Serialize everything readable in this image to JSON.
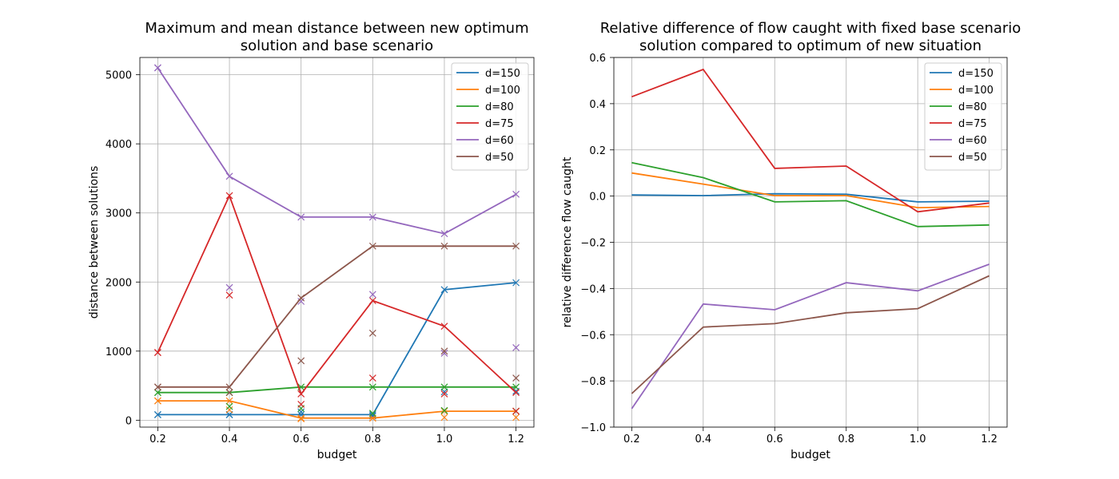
{
  "chart_data": [
    {
      "type": "line",
      "title_lines": [
        "Maximum and mean distance between new optimum",
        "solution and base scenario"
      ],
      "xlabel": "budget",
      "ylabel": "distance between solutions",
      "x": [
        0.2,
        0.4,
        0.6,
        0.8,
        1.0,
        1.2
      ],
      "xticks": [
        "0.2",
        "0.4",
        "0.6",
        "0.8",
        "1.0",
        "1.2"
      ],
      "yticks": [
        0,
        1000,
        2000,
        3000,
        4000,
        5000
      ],
      "ytick_labels": [
        "0",
        "1000",
        "2000",
        "3000",
        "4000",
        "5000"
      ],
      "xlim": [
        0.15,
        1.25
      ],
      "ylim": [
        -100,
        5250
      ],
      "grid": true,
      "legend_position": "top-right",
      "series": [
        {
          "name": "d=150",
          "color": "#1f77b4",
          "max": [
            80,
            80,
            80,
            80,
            1890,
            1990
          ],
          "mean": [
            80,
            80,
            120,
            60,
            410,
            420
          ]
        },
        {
          "name": "d=100",
          "color": "#ff7f0e",
          "max": [
            280,
            280,
            30,
            30,
            130,
            130
          ],
          "mean": [
            280,
            150,
            20,
            30,
            40,
            40
          ]
        },
        {
          "name": "d=80",
          "color": "#2ca02c",
          "max": [
            400,
            400,
            480,
            480,
            480,
            480
          ],
          "mean": [
            400,
            200,
            170,
            100,
            140,
            130
          ]
        },
        {
          "name": "d=75",
          "color": "#d62728",
          "max": [
            980,
            3250,
            380,
            1730,
            1360,
            400
          ],
          "mean": [
            980,
            1810,
            230,
            610,
            380,
            130
          ]
        },
        {
          "name": "d=60",
          "color": "#9467bd",
          "max": [
            5100,
            3530,
            2940,
            2940,
            2700,
            3270
          ],
          "mean": [
            5100,
            1920,
            1720,
            1820,
            970,
            1050
          ]
        },
        {
          "name": "d=50",
          "color": "#8c564b",
          "max": [
            480,
            480,
            1770,
            2520,
            2520,
            2520
          ],
          "mean": [
            480,
            400,
            860,
            1260,
            1000,
            610
          ]
        }
      ]
    },
    {
      "type": "line",
      "title_lines": [
        "Relative difference of flow caught with fixed base scenario",
        "solution compared to optimum of new situation"
      ],
      "xlabel": "budget",
      "ylabel": "relative difference flow caught",
      "x": [
        0.2,
        0.4,
        0.6,
        0.8,
        1.0,
        1.2
      ],
      "xticks": [
        "0.2",
        "0.4",
        "0.6",
        "0.8",
        "1.0",
        "1.2"
      ],
      "yticks": [
        -1.0,
        -0.8,
        -0.6,
        -0.4,
        -0.2,
        0.0,
        0.2,
        0.4,
        0.6
      ],
      "ytick_labels": [
        "−1.0",
        "−0.8",
        "−0.6",
        "−0.4",
        "−0.2",
        "0.0",
        "0.2",
        "0.4",
        "0.6"
      ],
      "xlim": [
        0.15,
        1.25
      ],
      "ylim": [
        -1.0,
        0.6
      ],
      "grid": true,
      "legend_position": "top-right",
      "series": [
        {
          "name": "d=150",
          "color": "#1f77b4",
          "values": [
            0.005,
            0.002,
            0.01,
            0.008,
            -0.025,
            -0.022
          ]
        },
        {
          "name": "d=100",
          "color": "#ff7f0e",
          "values": [
            0.1,
            0.052,
            0.002,
            0.002,
            -0.05,
            -0.045
          ]
        },
        {
          "name": "d=80",
          "color": "#2ca02c",
          "values": [
            0.145,
            0.08,
            -0.025,
            -0.02,
            -0.132,
            -0.125
          ]
        },
        {
          "name": "d=75",
          "color": "#d62728",
          "values": [
            0.43,
            0.548,
            0.12,
            0.13,
            -0.068,
            -0.03
          ]
        },
        {
          "name": "d=60",
          "color": "#9467bd",
          "values": [
            -0.92,
            -0.467,
            -0.492,
            -0.375,
            -0.41,
            -0.295
          ]
        },
        {
          "name": "d=50",
          "color": "#8c564b",
          "values": [
            -0.855,
            -0.567,
            -0.552,
            -0.505,
            -0.487,
            -0.345
          ]
        }
      ]
    }
  ]
}
